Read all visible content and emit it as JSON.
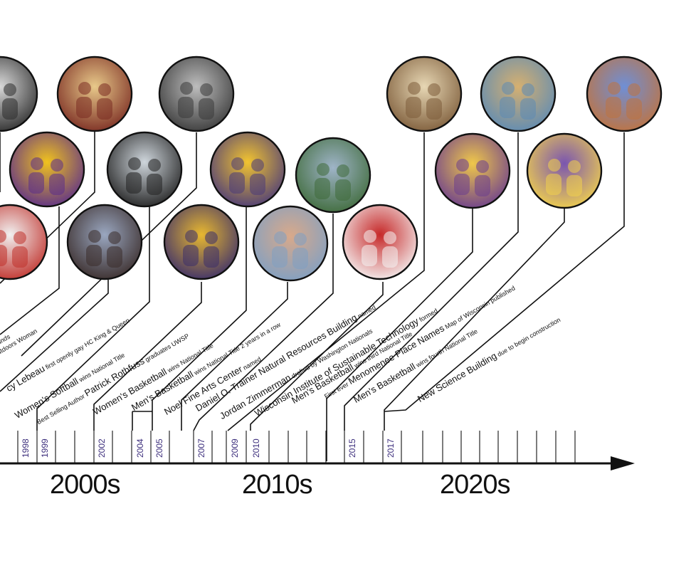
{
  "decades": [
    "2000s",
    "2010s",
    "2020s"
  ],
  "year_labels": [
    "1998",
    "1999",
    "2002",
    "2004",
    "2005",
    "2007",
    "2009",
    "2010",
    "2015",
    "2017"
  ],
  "events": [
    {
      "bold": "",
      "small": "unds"
    },
    {
      "bold": "",
      "small": "utdoors Woman"
    },
    {
      "bold": "cy Lebeau",
      "small": "first openly gay HC King & Queen"
    },
    {
      "bold": "Women's Softball",
      "small": "wins National Title"
    },
    {
      "pre": "Best Selling Author",
      "bold": "Patrick Rothfuss",
      "small": "graduates UWSP"
    },
    {
      "bold": "Women's Basketball",
      "small": "wins National Title"
    },
    {
      "bold": "Men's Basketball",
      "small": "wins National Title 2 years in a row"
    },
    {
      "bold": "Noel Fine Arts Center",
      "small": "named"
    },
    {
      "bold": "Daniel O. Trainer Natural Resources Building",
      "small": "named"
    },
    {
      "bold": "Jordan Zimmerman",
      "small": "drafted by Washington Nationals"
    },
    {
      "bold": "Wisconsin Institute of Sustainable Technology",
      "small": "formed"
    },
    {
      "bold": "Men's Basketball",
      "small": "wins third National Title"
    },
    {
      "pre": "First ever",
      "bold": "Menomenee Place Names",
      "small": "Map of Wisconsin published"
    },
    {
      "bold": "Men's Basketball",
      "small": "wins fourth National Title"
    },
    {
      "bold": "New Science Building",
      "small": "due to begin construction"
    }
  ],
  "photos": [
    {
      "name": "team-photo",
      "colors": [
        "#d9d9d9",
        "#2c2c2c"
      ]
    },
    {
      "name": "woman-portrait",
      "colors": [
        "#e8c98a",
        "#7a2b22"
      ]
    },
    {
      "name": "bearded-author",
      "colors": [
        "#bdbdbd",
        "#3a3a3a"
      ]
    },
    {
      "name": "hockey-team",
      "colors": [
        "#f0c21e",
        "#5b2d8c"
      ]
    },
    {
      "name": "coach-gesture",
      "colors": [
        "#cfd6dc",
        "#222222"
      ]
    },
    {
      "name": "basketball-celebration",
      "colors": [
        "#f2c430",
        "#4a3a7a"
      ]
    },
    {
      "name": "building-trees",
      "colors": [
        "#9fb4c8",
        "#3f6b3a"
      ]
    },
    {
      "name": "classroom-men",
      "colors": [
        "#e7d7b4",
        "#7d5c3a"
      ]
    },
    {
      "name": "map-presenter",
      "colors": [
        "#d6b070",
        "#5d8bb5"
      ]
    },
    {
      "name": "brick-building",
      "colors": [
        "#6f8fd6",
        "#c0733e"
      ]
    },
    {
      "name": "baseball-player",
      "colors": [
        "#c62828",
        "#f5f5f5"
      ]
    },
    {
      "name": "arts-center",
      "colors": [
        "#d9a98a",
        "#7fa0c4"
      ]
    },
    {
      "name": "softball-player",
      "colors": [
        "#f1f1f1",
        "#c0302a"
      ]
    },
    {
      "name": "homecoming-couple",
      "colors": [
        "#9aa7c0",
        "#3a2c2a"
      ]
    },
    {
      "name": "women-basketball",
      "colors": [
        "#e8b830",
        "#3b2e6b"
      ]
    },
    {
      "name": "crowd-celebration",
      "colors": [
        "#f0c84a",
        "#6b3d8f"
      ]
    },
    {
      "name": "championship-team",
      "colors": [
        "#7a55b0",
        "#f3d34b"
      ]
    }
  ]
}
